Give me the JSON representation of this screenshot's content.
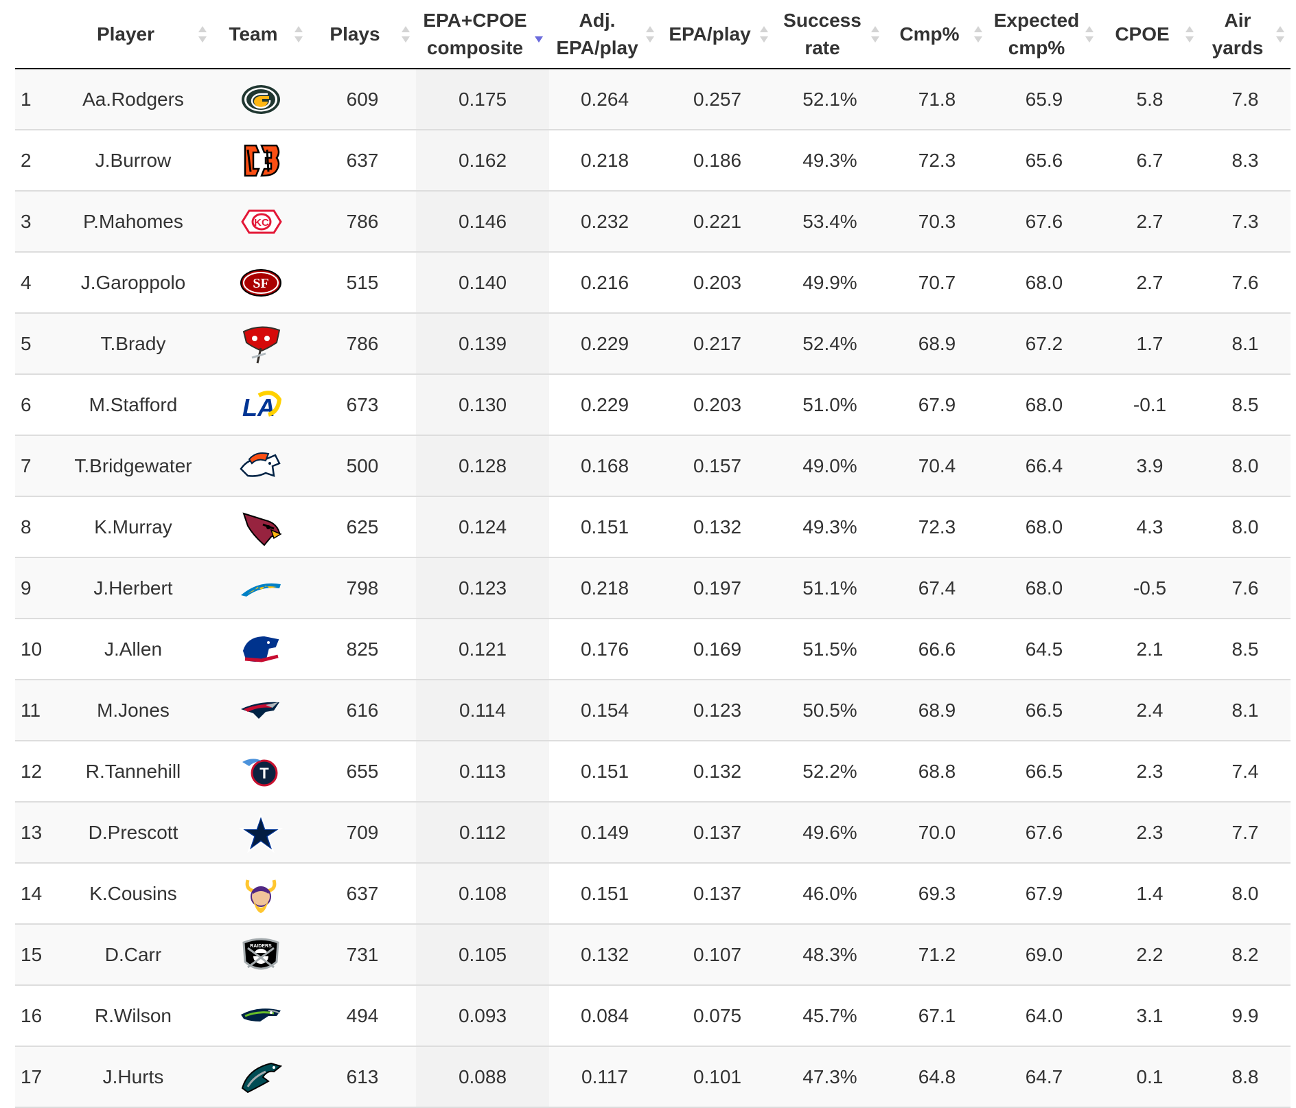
{
  "table": {
    "columns": [
      {
        "label": "",
        "sortable": false
      },
      {
        "label": "Player",
        "sortable": true,
        "sort": "none"
      },
      {
        "label": "Team",
        "sortable": true,
        "sort": "none"
      },
      {
        "label": "Plays",
        "sortable": true,
        "sort": "none"
      },
      {
        "label": "EPA+CPOE composite",
        "sortable": true,
        "sort": "desc"
      },
      {
        "label": "Adj. EPA/play",
        "sortable": true,
        "sort": "none"
      },
      {
        "label": "EPA/play",
        "sortable": true,
        "sort": "none"
      },
      {
        "label": "Success rate",
        "sortable": true,
        "sort": "none"
      },
      {
        "label": "Cmp%",
        "sortable": true,
        "sort": "none"
      },
      {
        "label": "Expected cmp%",
        "sortable": true,
        "sort": "none"
      },
      {
        "label": "CPOE",
        "sortable": true,
        "sort": "none"
      },
      {
        "label": "Air yards",
        "sortable": true,
        "sort": "none"
      }
    ],
    "rows": [
      {
        "rank": "1",
        "player": "Aa.Rodgers",
        "team_icon": "packers-logo-icon",
        "plays": "609",
        "composite": "0.175",
        "adj_epa": "0.264",
        "epa": "0.257",
        "success": "52.1%",
        "cmp": "71.8",
        "exp_cmp": "65.9",
        "cpoe": "5.8",
        "air_yards": "7.8"
      },
      {
        "rank": "2",
        "player": "J.Burrow",
        "team_icon": "bengals-logo-icon",
        "plays": "637",
        "composite": "0.162",
        "adj_epa": "0.218",
        "epa": "0.186",
        "success": "49.3%",
        "cmp": "72.3",
        "exp_cmp": "65.6",
        "cpoe": "6.7",
        "air_yards": "8.3"
      },
      {
        "rank": "3",
        "player": "P.Mahomes",
        "team_icon": "chiefs-logo-icon",
        "plays": "786",
        "composite": "0.146",
        "adj_epa": "0.232",
        "epa": "0.221",
        "success": "53.4%",
        "cmp": "70.3",
        "exp_cmp": "67.6",
        "cpoe": "2.7",
        "air_yards": "7.3"
      },
      {
        "rank": "4",
        "player": "J.Garoppolo",
        "team_icon": "49ers-logo-icon",
        "plays": "515",
        "composite": "0.140",
        "adj_epa": "0.216",
        "epa": "0.203",
        "success": "49.9%",
        "cmp": "70.7",
        "exp_cmp": "68.0",
        "cpoe": "2.7",
        "air_yards": "7.6"
      },
      {
        "rank": "5",
        "player": "T.Brady",
        "team_icon": "buccaneers-logo-icon",
        "plays": "786",
        "composite": "0.139",
        "adj_epa": "0.229",
        "epa": "0.217",
        "success": "52.4%",
        "cmp": "68.9",
        "exp_cmp": "67.2",
        "cpoe": "1.7",
        "air_yards": "8.1"
      },
      {
        "rank": "6",
        "player": "M.Stafford",
        "team_icon": "rams-logo-icon",
        "plays": "673",
        "composite": "0.130",
        "adj_epa": "0.229",
        "epa": "0.203",
        "success": "51.0%",
        "cmp": "67.9",
        "exp_cmp": "68.0",
        "cpoe": "-0.1",
        "air_yards": "8.5"
      },
      {
        "rank": "7",
        "player": "T.Bridgewater",
        "team_icon": "broncos-logo-icon",
        "plays": "500",
        "composite": "0.128",
        "adj_epa": "0.168",
        "epa": "0.157",
        "success": "49.0%",
        "cmp": "70.4",
        "exp_cmp": "66.4",
        "cpoe": "3.9",
        "air_yards": "8.0"
      },
      {
        "rank": "8",
        "player": "K.Murray",
        "team_icon": "cardinals-logo-icon",
        "plays": "625",
        "composite": "0.124",
        "adj_epa": "0.151",
        "epa": "0.132",
        "success": "49.3%",
        "cmp": "72.3",
        "exp_cmp": "68.0",
        "cpoe": "4.3",
        "air_yards": "8.0"
      },
      {
        "rank": "9",
        "player": "J.Herbert",
        "team_icon": "chargers-logo-icon",
        "plays": "798",
        "composite": "0.123",
        "adj_epa": "0.218",
        "epa": "0.197",
        "success": "51.1%",
        "cmp": "67.4",
        "exp_cmp": "68.0",
        "cpoe": "-0.5",
        "air_yards": "7.6"
      },
      {
        "rank": "10",
        "player": "J.Allen",
        "team_icon": "bills-logo-icon",
        "plays": "825",
        "composite": "0.121",
        "adj_epa": "0.176",
        "epa": "0.169",
        "success": "51.5%",
        "cmp": "66.6",
        "exp_cmp": "64.5",
        "cpoe": "2.1",
        "air_yards": "8.5"
      },
      {
        "rank": "11",
        "player": "M.Jones",
        "team_icon": "patriots-logo-icon",
        "plays": "616",
        "composite": "0.114",
        "adj_epa": "0.154",
        "epa": "0.123",
        "success": "50.5%",
        "cmp": "68.9",
        "exp_cmp": "66.5",
        "cpoe": "2.4",
        "air_yards": "8.1"
      },
      {
        "rank": "12",
        "player": "R.Tannehill",
        "team_icon": "titans-logo-icon",
        "plays": "655",
        "composite": "0.113",
        "adj_epa": "0.151",
        "epa": "0.132",
        "success": "52.2%",
        "cmp": "68.8",
        "exp_cmp": "66.5",
        "cpoe": "2.3",
        "air_yards": "7.4"
      },
      {
        "rank": "13",
        "player": "D.Prescott",
        "team_icon": "cowboys-logo-icon",
        "plays": "709",
        "composite": "0.112",
        "adj_epa": "0.149",
        "epa": "0.137",
        "success": "49.6%",
        "cmp": "70.0",
        "exp_cmp": "67.6",
        "cpoe": "2.3",
        "air_yards": "7.7"
      },
      {
        "rank": "14",
        "player": "K.Cousins",
        "team_icon": "vikings-logo-icon",
        "plays": "637",
        "composite": "0.108",
        "adj_epa": "0.151",
        "epa": "0.137",
        "success": "46.0%",
        "cmp": "69.3",
        "exp_cmp": "67.9",
        "cpoe": "1.4",
        "air_yards": "8.0"
      },
      {
        "rank": "15",
        "player": "D.Carr",
        "team_icon": "raiders-logo-icon",
        "plays": "731",
        "composite": "0.105",
        "adj_epa": "0.132",
        "epa": "0.107",
        "success": "48.3%",
        "cmp": "71.2",
        "exp_cmp": "69.0",
        "cpoe": "2.2",
        "air_yards": "8.2"
      },
      {
        "rank": "16",
        "player": "R.Wilson",
        "team_icon": "seahawks-logo-icon",
        "plays": "494",
        "composite": "0.093",
        "adj_epa": "0.084",
        "epa": "0.075",
        "success": "45.7%",
        "cmp": "67.1",
        "exp_cmp": "64.0",
        "cpoe": "3.1",
        "air_yards": "9.9"
      },
      {
        "rank": "17",
        "player": "J.Hurts",
        "team_icon": "eagles-logo-icon",
        "plays": "613",
        "composite": "0.088",
        "adj_epa": "0.117",
        "epa": "0.101",
        "success": "47.3%",
        "cmp": "64.8",
        "exp_cmp": "64.7",
        "cpoe": "0.1",
        "air_yards": "8.8"
      }
    ]
  },
  "colors": {
    "header_text": "#333333",
    "body_text": "#333333",
    "sort_active": "#6b6bdc",
    "sort_inactive": "#d4d4d4",
    "row_stripe": "#f9f9f9",
    "sorted_column": "#f2f2f2",
    "row_border": "#dddddd",
    "header_border": "#111111"
  }
}
